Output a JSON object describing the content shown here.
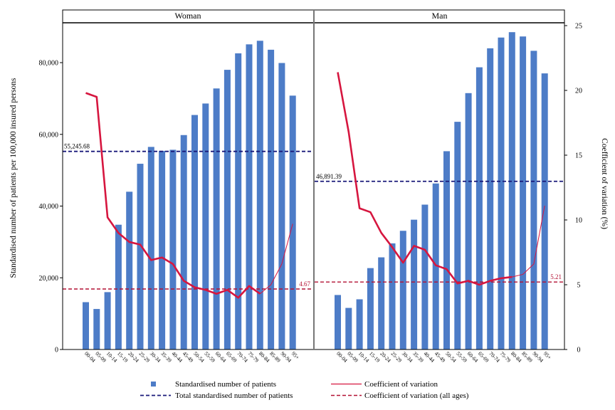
{
  "chart_data": {
    "type": "bar",
    "panels": [
      {
        "name": "Woman",
        "bars": [
          13200,
          11300,
          16000,
          34800,
          44000,
          51800,
          56500,
          55400,
          55700,
          59800,
          65400,
          68600,
          72800,
          78000,
          82600,
          85100,
          86100,
          83600,
          79900,
          70800
        ],
        "cv_thick": [
          19.8,
          19.5,
          10.2,
          9.0,
          8.3,
          8.1,
          6.9,
          7.1,
          6.6,
          5.3,
          4.8,
          4.6,
          4.3,
          4.6,
          4.0,
          4.9,
          4.3
        ],
        "cv_thin": [
          4.3,
          5.0,
          6.6,
          9.7
        ],
        "total_patients": 55245.68,
        "total_label": "55,245.68",
        "cv_all": 4.67,
        "cv_label": "4.67"
      },
      {
        "name": "Man",
        "bars": [
          15200,
          11600,
          14000,
          22700,
          25700,
          29600,
          33100,
          36200,
          40400,
          46300,
          55300,
          63500,
          71500,
          78700,
          84000,
          87000,
          88500,
          87300,
          83300,
          77000
        ],
        "cv_thick": [
          21.4,
          16.8,
          10.9,
          10.6,
          9.0,
          7.9,
          6.7,
          8.0,
          7.7,
          6.5,
          6.2,
          5.1,
          5.3,
          5.0,
          5.3,
          5.5,
          5.6
        ],
        "cv_thin": [
          5.6,
          5.8,
          6.6,
          11.1
        ],
        "total_patients": 46891.39,
        "total_label": "46,891.39",
        "cv_all": 5.21,
        "cv_label": "5.21"
      }
    ],
    "categories": [
      "00-04",
      "05-09",
      "10-14",
      "15-19",
      "20-24",
      "25-29",
      "30-34",
      "35-39",
      "40-44",
      "45-49",
      "50-54",
      "55-59",
      "60-64",
      "65-69",
      "70-74",
      "75-79",
      "80-84",
      "85-89",
      "90-94",
      "95+"
    ],
    "ylabel_left": "Standardised number of patients per 100,000 insured persons",
    "ylabel_right": "Coefficient of variation (%)",
    "ylim_left": [
      0,
      90588
    ],
    "ylim_right": [
      0,
      25
    ],
    "yticks_left": [
      0,
      20000,
      40000,
      60000,
      80000
    ],
    "yticks_left_labels": [
      "0",
      "20,000",
      "40,000",
      "60,000",
      "80,000"
    ],
    "yticks_right": [
      0,
      5,
      10,
      15,
      20,
      25
    ],
    "yticks_right_labels": [
      "0",
      "5",
      "10",
      "15",
      "20",
      "25"
    ],
    "legend": [
      {
        "key": "bar",
        "label": "Standardised number of patients"
      },
      {
        "key": "cv",
        "label": "Coefficient of variation"
      },
      {
        "key": "total",
        "label": "Total standardised number of patients"
      },
      {
        "key": "cvall",
        "label": "Coefficient of variation (all ages)"
      }
    ],
    "legend_position": "bottom",
    "colors": {
      "bar": "#4d7cc7",
      "cv": "#d6163f",
      "total": "#1a1a7a",
      "cvall": "#b31133"
    },
    "grid": false
  }
}
